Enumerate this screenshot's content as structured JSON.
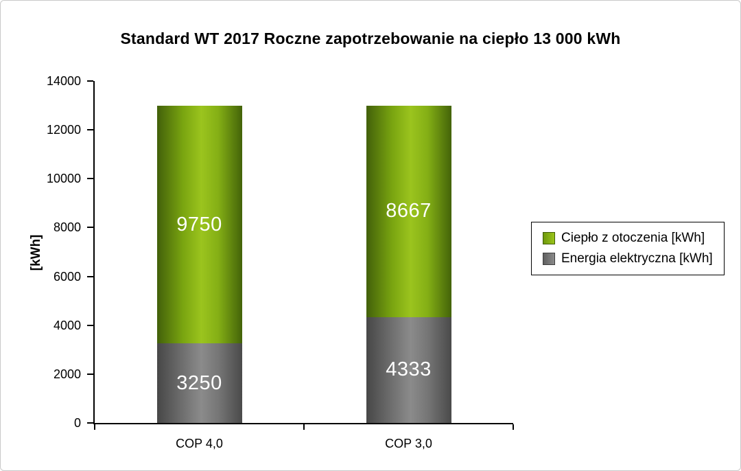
{
  "chart_data": {
    "type": "bar",
    "stacked": true,
    "title": "Standard WT 2017 Roczne zapotrzebowanie na ciepło 13 000 kWh",
    "categories": [
      "COP 4,0",
      "COP 3,0"
    ],
    "series": [
      {
        "name": "Ciepło z otoczenia [kWh]",
        "color": "#76a402",
        "values": [
          9750,
          8667
        ]
      },
      {
        "name": "Energia elektryczna [kWh]",
        "color": "#737373",
        "values": [
          3250,
          4333
        ]
      }
    ],
    "xlabel": "",
    "ylabel": "[kWh]",
    "ylim": [
      0,
      14000
    ],
    "yticks": [
      0,
      2000,
      4000,
      6000,
      8000,
      10000,
      12000,
      14000
    ],
    "grid": false,
    "legend_position": "right"
  }
}
